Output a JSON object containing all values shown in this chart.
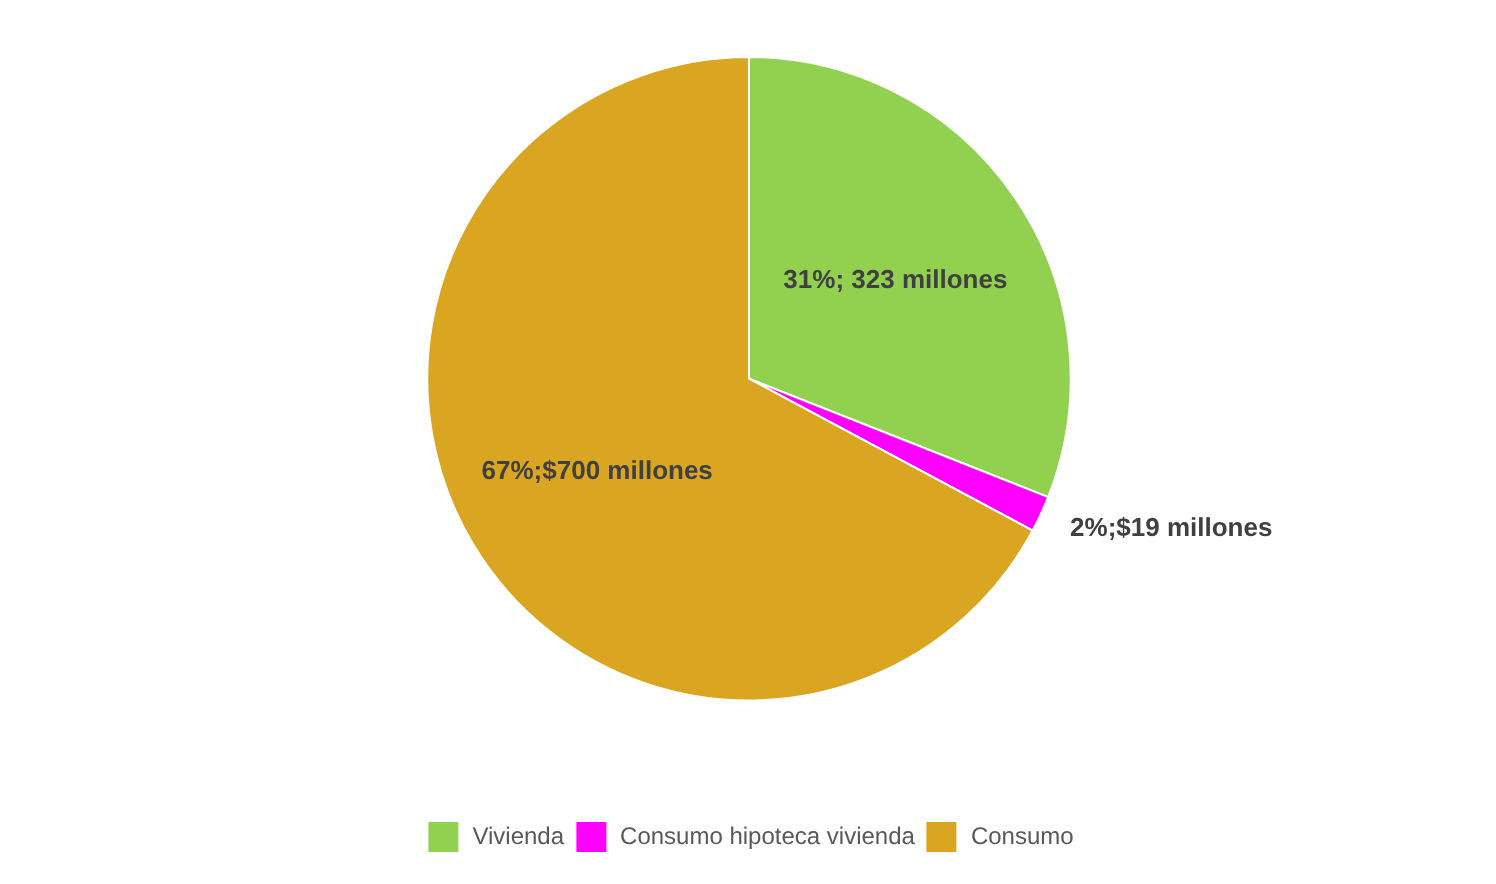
{
  "chart_data": {
    "type": "pie",
    "categories": [
      "Vivienda",
      "Consumo hipoteca vivienda",
      "Consumo"
    ],
    "values": [
      323,
      19,
      700
    ],
    "colors": [
      "#92d050",
      "#ff00ff",
      "#daa520"
    ],
    "value_labels": [
      "31%; 323 millones",
      "2%;$19 millones",
      "67%;$700 millones"
    ],
    "legend": "bottom"
  }
}
